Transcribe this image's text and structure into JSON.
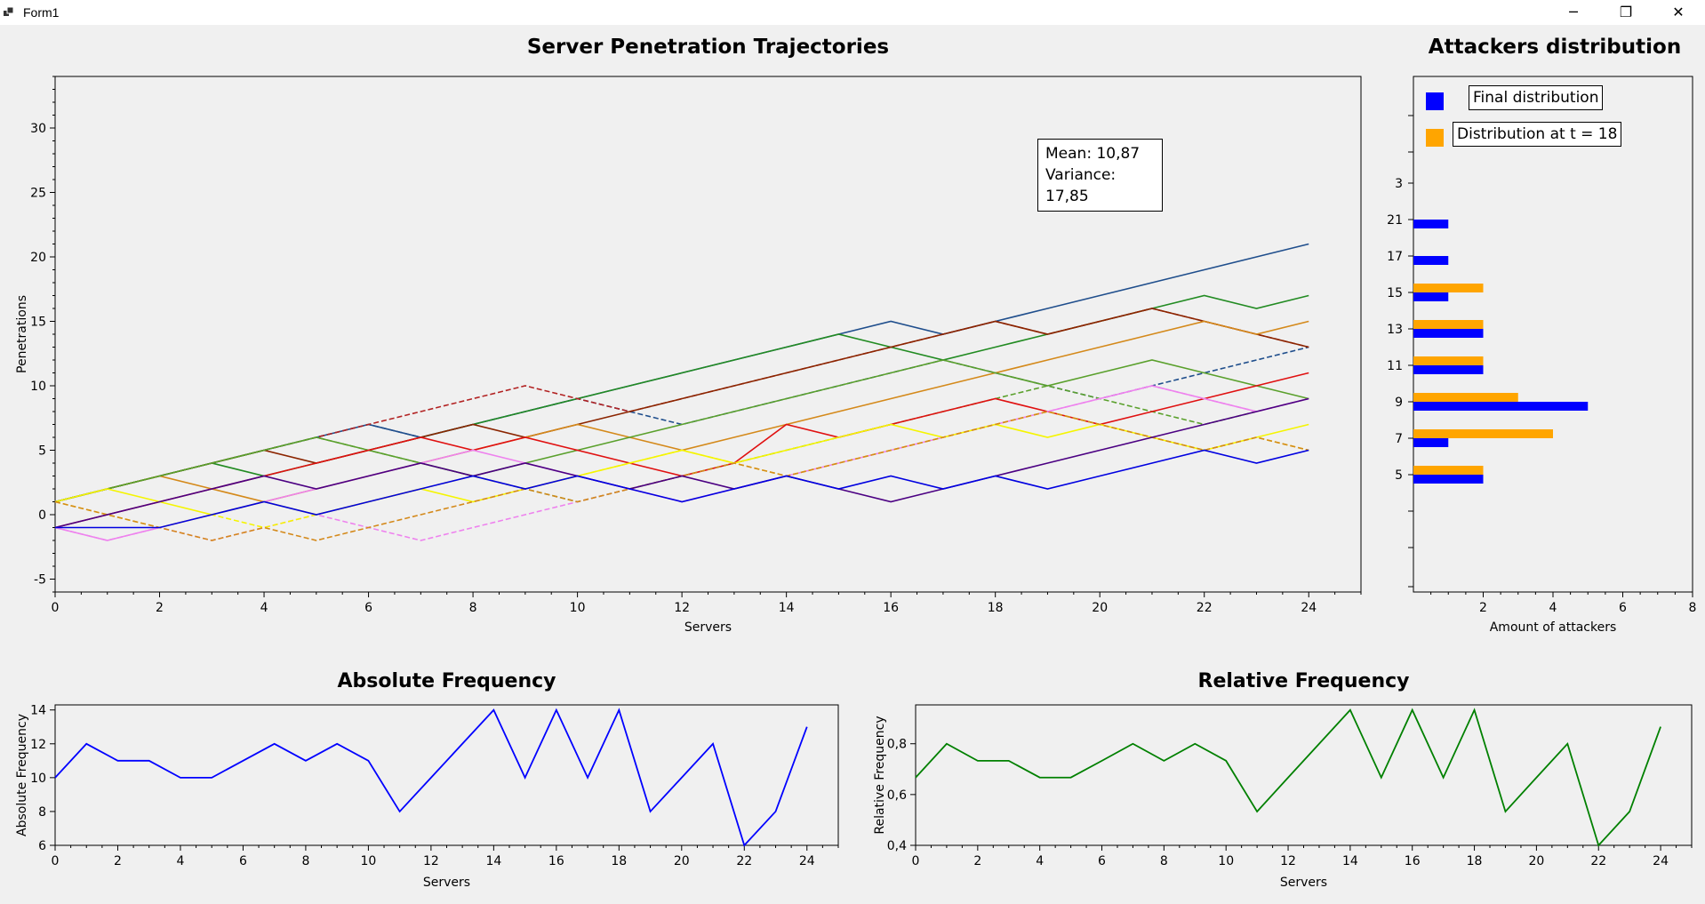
{
  "window": {
    "title": "Form1",
    "minimize_glyph": "─",
    "maximize_glyph": "❐",
    "close_glyph": "✕"
  },
  "trajectories_chart": {
    "type": "line",
    "title": "Server Penetration Trajectories",
    "xlabel": "Servers",
    "ylabel": "Penetrations",
    "xlim": [
      0,
      25
    ],
    "ylim": [
      -6,
      34
    ],
    "xticks": [
      0,
      2,
      4,
      6,
      8,
      10,
      12,
      14,
      16,
      18,
      20,
      22,
      24
    ],
    "yticks": [
      -5,
      0,
      5,
      10,
      15,
      20,
      25,
      30
    ],
    "stats": {
      "mean": "Mean: 10,87",
      "variance": "Variance: 17,85"
    },
    "series": [
      {
        "color": "#1f4e8c",
        "dashed": false,
        "values": [
          1,
          2,
          3,
          4,
          5,
          6,
          7,
          6,
          7,
          8,
          9,
          10,
          11,
          12,
          13,
          14,
          15,
          14,
          15,
          16,
          17,
          18,
          19,
          20,
          21
        ]
      },
      {
        "color": "#1f4e8c",
        "dashed": true,
        "values": [
          1,
          2,
          3,
          4,
          5,
          6,
          7,
          6,
          7,
          8,
          9,
          8,
          7,
          8,
          9,
          10,
          11,
          12,
          11,
          10,
          9,
          10,
          11,
          12,
          13
        ]
      },
      {
        "color": "#228b22",
        "dashed": false,
        "values": [
          1,
          2,
          3,
          4,
          3,
          4,
          5,
          6,
          7,
          8,
          9,
          10,
          11,
          12,
          13,
          14,
          13,
          12,
          13,
          14,
          15,
          16,
          17,
          16,
          17
        ]
      },
      {
        "color": "#b22222",
        "dashed": true,
        "values": [
          1,
          2,
          3,
          4,
          5,
          6,
          7,
          8,
          9,
          10,
          9,
          8,
          9,
          10,
          11,
          12,
          13,
          14,
          15,
          14,
          15,
          16,
          15,
          14,
          13
        ]
      },
      {
        "color": "#8b2500",
        "dashed": false,
        "values": [
          1,
          2,
          3,
          4,
          5,
          4,
          5,
          6,
          7,
          6,
          7,
          8,
          9,
          10,
          11,
          12,
          13,
          14,
          15,
          14,
          15,
          16,
          15,
          14,
          13
        ]
      },
      {
        "color": "#d4891a",
        "dashed": false,
        "values": [
          1,
          2,
          3,
          2,
          1,
          2,
          3,
          4,
          5,
          6,
          7,
          6,
          5,
          6,
          7,
          8,
          9,
          10,
          11,
          12,
          13,
          14,
          15,
          14,
          15
        ]
      },
      {
        "color": "#5aa02c",
        "dashed": false,
        "values": [
          1,
          2,
          3,
          4,
          5,
          6,
          5,
          4,
          3,
          4,
          5,
          6,
          7,
          8,
          9,
          10,
          11,
          12,
          11,
          10,
          11,
          12,
          11,
          10,
          9
        ]
      },
      {
        "color": "#5aa02c",
        "dashed": true,
        "values": [
          1,
          2,
          3,
          4,
          5,
          6,
          5,
          4,
          3,
          2,
          1,
          2,
          3,
          4,
          5,
          6,
          7,
          8,
          9,
          10,
          9,
          8,
          7,
          8,
          9
        ]
      },
      {
        "color": "#e01010",
        "dashed": false,
        "values": [
          -1,
          0,
          1,
          2,
          3,
          4,
          5,
          6,
          5,
          6,
          5,
          4,
          3,
          4,
          7,
          6,
          7,
          8,
          9,
          8,
          7,
          8,
          9,
          10,
          11
        ]
      },
      {
        "color": "#ee82ee",
        "dashed": false,
        "values": [
          -1,
          -2,
          -1,
          0,
          1,
          2,
          3,
          4,
          5,
          4,
          3,
          2,
          1,
          2,
          3,
          4,
          5,
          6,
          7,
          8,
          9,
          10,
          9,
          8,
          9
        ]
      },
      {
        "color": "#ee82ee",
        "dashed": true,
        "values": [
          -1,
          -2,
          -1,
          -2,
          -1,
          0,
          -1,
          -2,
          -1,
          0,
          1,
          2,
          1,
          2,
          3,
          4,
          5,
          6,
          7,
          8,
          9,
          10,
          9,
          8,
          9
        ]
      },
      {
        "color": "#f5f500",
        "dashed": false,
        "values": [
          1,
          2,
          1,
          0,
          1,
          0,
          1,
          2,
          1,
          2,
          3,
          4,
          5,
          4,
          5,
          6,
          7,
          6,
          7,
          6,
          7,
          6,
          5,
          6,
          7
        ]
      },
      {
        "color": "#f5f500",
        "dashed": true,
        "values": [
          1,
          0,
          -1,
          0,
          -1,
          0,
          1,
          2,
          3,
          2,
          3,
          4,
          5,
          4,
          3,
          4,
          5,
          6,
          7,
          8,
          7,
          6,
          5,
          6,
          5
        ]
      },
      {
        "color": "#d4891a",
        "dashed": true,
        "values": [
          1,
          0,
          -1,
          -2,
          -1,
          -2,
          -1,
          0,
          1,
          2,
          1,
          2,
          3,
          4,
          3,
          4,
          5,
          6,
          7,
          8,
          7,
          6,
          5,
          6,
          5
        ]
      },
      {
        "color": "#4b0082",
        "dashed": false,
        "values": [
          -1,
          0,
          1,
          2,
          3,
          2,
          3,
          4,
          3,
          4,
          3,
          2,
          3,
          2,
          3,
          2,
          1,
          2,
          3,
          4,
          5,
          6,
          7,
          8,
          9
        ]
      },
      {
        "color": "#0000e0",
        "dashed": false,
        "values": [
          -1,
          -1,
          -1,
          0,
          1,
          0,
          1,
          2,
          3,
          2,
          3,
          2,
          1,
          2,
          3,
          2,
          3,
          2,
          3,
          2,
          3,
          4,
          5,
          4,
          5
        ]
      }
    ]
  },
  "attackers_chart": {
    "type": "bar",
    "title": "Attackers distribution",
    "xlabel": "Amount of attackers",
    "xlim": [
      0,
      8
    ],
    "xticks": [
      2,
      4,
      6,
      8
    ],
    "category_labels": [
      "5",
      "7",
      "9",
      "11",
      "13",
      "15",
      "17",
      "21",
      "3"
    ],
    "series": [
      {
        "name": "Final distribution",
        "color": "#0000ff",
        "values": [
          2,
          1,
          5,
          2,
          2,
          1,
          1,
          1,
          0
        ]
      },
      {
        "name": "Distribution at t = 18",
        "color": "#ffa500",
        "values": [
          2,
          4,
          3,
          2,
          2,
          2,
          0,
          0,
          0
        ]
      }
    ]
  },
  "absolute_chart": {
    "type": "line",
    "title": "Absolute Frequency",
    "xlabel": "Servers",
    "ylabel": "Absolute Frequency",
    "color": "#0000ff",
    "xlim": [
      0,
      25
    ],
    "ylim": [
      6,
      14.3
    ],
    "xticks": [
      0,
      2,
      4,
      6,
      8,
      10,
      12,
      14,
      16,
      18,
      20,
      22,
      24
    ],
    "yticks": [
      6,
      8,
      10,
      12,
      14
    ],
    "ytick_labels": [
      "6",
      "8",
      "10",
      "12",
      "14"
    ],
    "values": [
      10,
      12,
      11,
      11,
      10,
      10,
      11,
      12,
      11,
      12,
      11,
      8,
      10,
      12,
      14,
      10,
      14,
      10,
      14,
      8,
      10,
      12,
      6,
      8,
      13
    ]
  },
  "relative_chart": {
    "type": "line",
    "title": "Relative Frequency",
    "xlabel": "Servers",
    "ylabel": "Relative Frequency",
    "color": "#008000",
    "xlim": [
      0,
      25
    ],
    "ylim": [
      0.4,
      0.953
    ],
    "xticks": [
      0,
      2,
      4,
      6,
      8,
      10,
      12,
      14,
      16,
      18,
      20,
      22,
      24
    ],
    "yticks": [
      0.4,
      0.6,
      0.8
    ],
    "ytick_labels": [
      "0,4",
      "0,6",
      "0,8"
    ],
    "values": [
      0.667,
      0.8,
      0.733,
      0.733,
      0.667,
      0.667,
      0.733,
      0.8,
      0.733,
      0.8,
      0.733,
      0.533,
      0.667,
      0.8,
      0.933,
      0.667,
      0.933,
      0.667,
      0.933,
      0.533,
      0.667,
      0.8,
      0.4,
      0.533,
      0.867
    ]
  }
}
